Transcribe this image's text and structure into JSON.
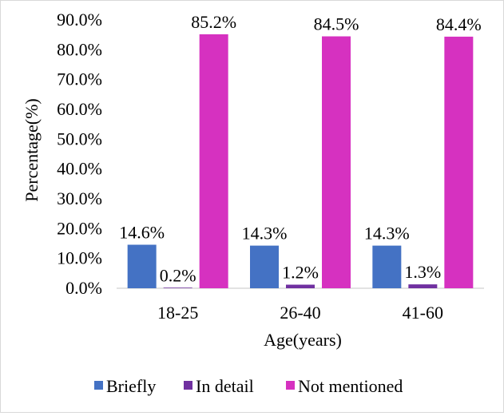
{
  "chart_data": {
    "type": "bar",
    "categories": [
      "18-25",
      "26-40",
      "41-60"
    ],
    "series": [
      {
        "name": "Briefly",
        "values": [
          14.6,
          14.3,
          14.3
        ],
        "labels": [
          "14.6%",
          "14.3%",
          "14.3%"
        ],
        "color": "#4472C4"
      },
      {
        "name": "In detail",
        "values": [
          0.2,
          1.2,
          1.3
        ],
        "labels": [
          "0.2%",
          "1.2%",
          "1.3%"
        ],
        "color": "#7030A0"
      },
      {
        "name": "Not mentioned",
        "values": [
          85.2,
          84.5,
          84.4
        ],
        "labels": [
          "85.2%",
          "84.5%",
          "84.4%"
        ],
        "color": "#D631C0"
      }
    ],
    "y_ticks": [
      "0.0%",
      "10.0%",
      "20.0%",
      "30.0%",
      "40.0%",
      "50.0%",
      "60.0%",
      "70.0%",
      "80.0%",
      "90.0%"
    ],
    "ylim": [
      0,
      90
    ],
    "xlabel": "Age(years)",
    "ylabel": "Percentage(%)",
    "grid": false,
    "legend_position": "bottom"
  }
}
